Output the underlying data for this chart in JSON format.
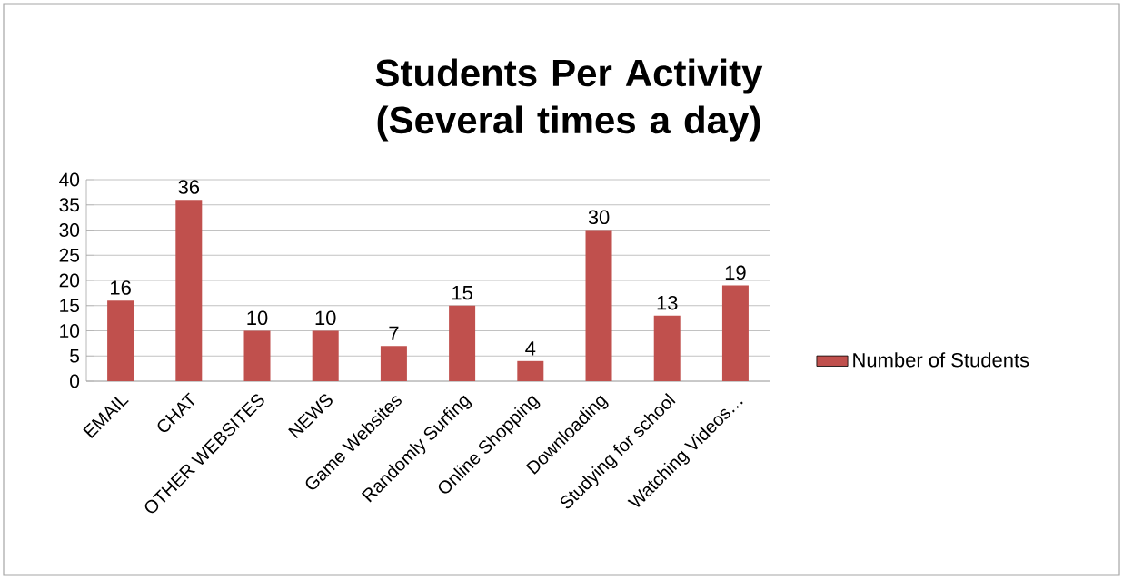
{
  "chart_data": {
    "type": "bar",
    "title": "Students Per Activity (Several times a day)",
    "categories": [
      "EMAIL",
      "CHAT",
      "OTHER WEBSITES",
      "NEWS",
      "Game Websites",
      "Randomly Surfing",
      "Online Shopping",
      "Downloading",
      "Studying for school",
      "Watching Videos…"
    ],
    "series": [
      {
        "name": "Number of Students",
        "color": "#c0504d",
        "values": [
          16,
          36,
          10,
          10,
          7,
          15,
          4,
          30,
          13,
          19
        ]
      }
    ],
    "ylim": [
      0,
      40
    ],
    "yticks": [
      0,
      5,
      10,
      15,
      20,
      25,
      30,
      35,
      40
    ],
    "grid": "y",
    "legend": "right",
    "data_labels": true
  }
}
